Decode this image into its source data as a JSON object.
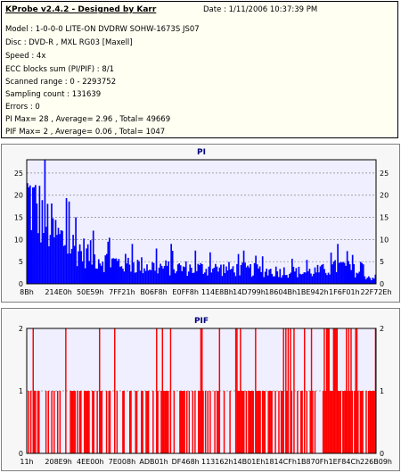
{
  "info": {
    "title": "KProbe v2.4.2 - Designed by Karr",
    "date": "Date : 1/11/2006 10:37:39 PM",
    "lines": [
      "Model : 1-0-0-0 LITE-ON DVDRW SOHW-1673S JS07",
      "Disc : DVD-R , MXL RG03 [Maxell]",
      "Speed : 4x",
      "ECC blocks sum (PI/PIF) : 8/1",
      "Scanned range : 0 - 2293752",
      "Sampling count : 131639",
      "Errors : 0",
      "PI Max= 28 , Average= 2.96 , Total= 49669",
      "PIF Max= 2 , Average= 0.06 , Total= 1047"
    ]
  },
  "colors": {
    "pi_bars": "#0000ff",
    "pif_bars": "#ff0000",
    "plot_bg": "#efefff",
    "title": "#000080"
  },
  "chart_data": [
    {
      "type": "bar",
      "title": "PI",
      "xlabel": "",
      "ylabel": "",
      "ylim": [
        0,
        28
      ],
      "y_ticks": [
        0,
        5,
        10,
        15,
        20,
        25
      ],
      "x_ticks": [
        "8Bh",
        "214E0h",
        "50E59h",
        "7FF21h",
        "B06F8h",
        "E0FF8h",
        "114E8Bh",
        "14D799h",
        "18604Bh",
        "1BE942h",
        "1F6F01h",
        "22F72Eh"
      ],
      "grid": true,
      "envelope": [
        [
          0,
          27
        ],
        [
          2,
          24
        ],
        [
          5,
          20
        ],
        [
          8,
          15
        ],
        [
          11,
          13
        ],
        [
          14,
          11
        ],
        [
          18,
          9
        ],
        [
          23,
          7
        ],
        [
          30,
          6
        ],
        [
          40,
          5
        ],
        [
          50,
          4.8
        ],
        [
          60,
          4.5
        ],
        [
          70,
          4
        ],
        [
          80,
          3.6
        ],
        [
          85,
          4.2
        ],
        [
          90,
          5.5
        ],
        [
          94,
          4
        ],
        [
          98,
          2
        ]
      ],
      "spikes": [
        [
          5,
          28
        ],
        [
          12,
          17
        ],
        [
          14,
          15
        ],
        [
          19,
          12
        ],
        [
          23,
          9.5
        ],
        [
          41,
          9
        ],
        [
          48,
          7.5
        ],
        [
          62,
          7.5
        ],
        [
          87,
          8.5
        ],
        [
          89,
          9
        ]
      ]
    },
    {
      "type": "bar",
      "title": "PIF",
      "xlabel": "",
      "ylabel": "",
      "ylim": [
        0,
        2
      ],
      "y_ticks": [
        0,
        1,
        2
      ],
      "x_ticks": [
        "11h",
        "208E9h",
        "4EE00h",
        "7E008h",
        "ADB01h",
        "DF468h",
        "113162h",
        "14B01Eh",
        "1814CFh",
        "1B870Fh",
        "1EF84Ch",
        "226B09h"
      ],
      "grid": true,
      "level_one_share": 0.55,
      "level_two_share": 0.1
    }
  ]
}
